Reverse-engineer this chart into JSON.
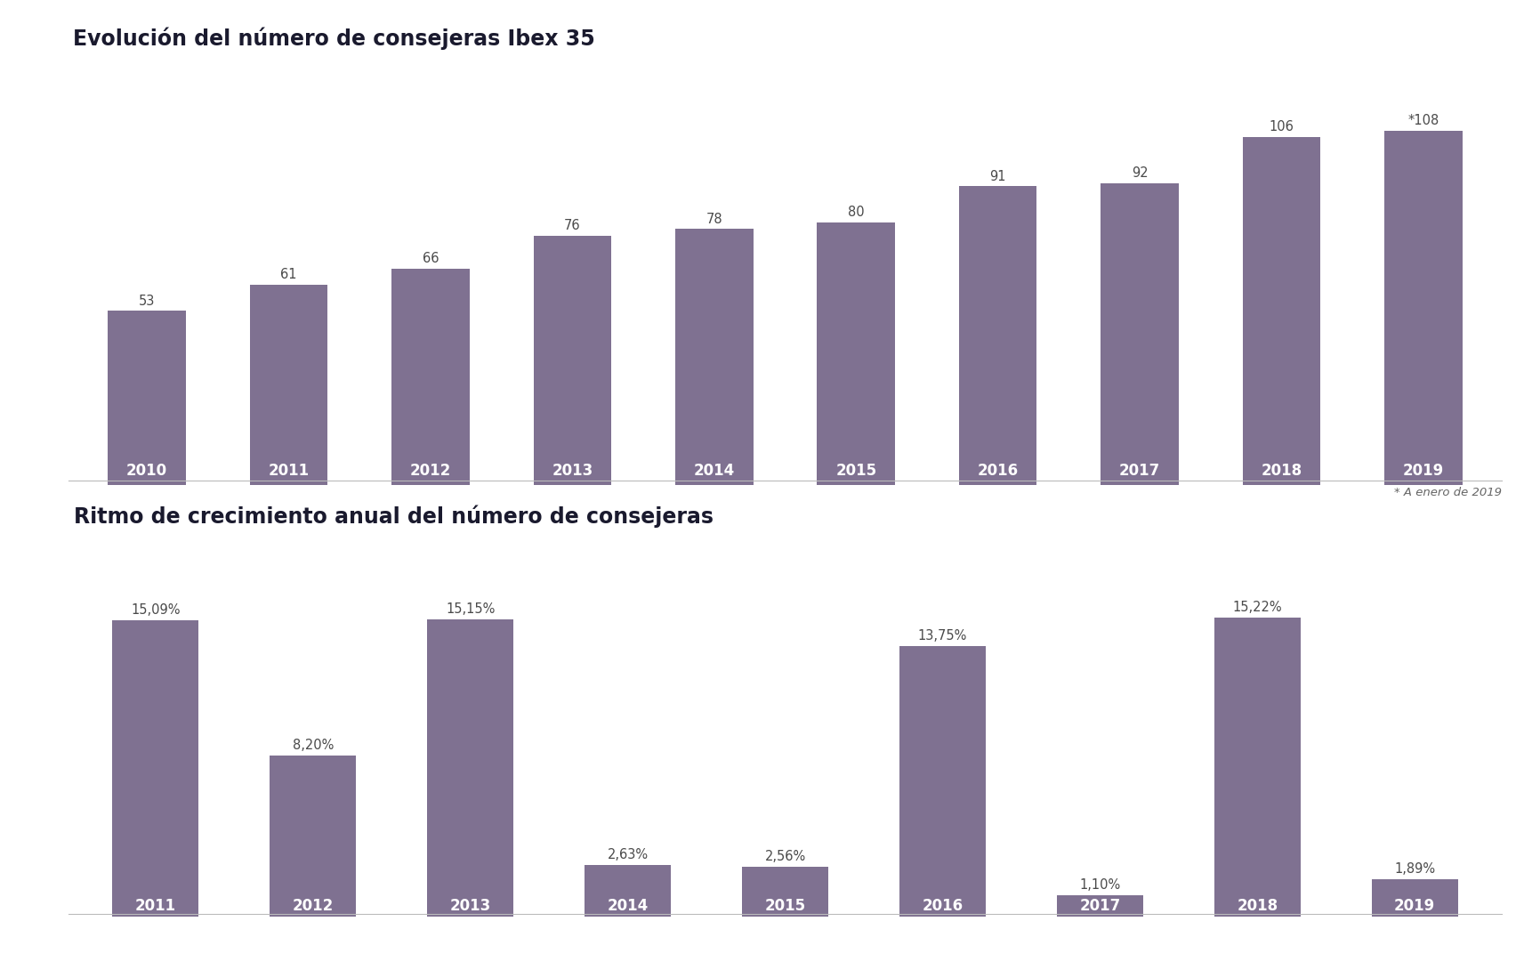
{
  "chart1_title": "Evolución del número de consejeras Ibex 35",
  "chart1_years": [
    "2010",
    "2011",
    "2012",
    "2013",
    "2014",
    "2015",
    "2016",
    "2017",
    "2018",
    "2019"
  ],
  "chart1_values": [
    53,
    61,
    66,
    76,
    78,
    80,
    91,
    92,
    106,
    108
  ],
  "chart1_labels": [
    "53",
    "61",
    "66",
    "76",
    "78",
    "80",
    "91",
    "92",
    "106",
    "*108"
  ],
  "chart1_footnote": "* A enero de 2019",
  "chart2_title": "Ritmo de crecimiento anual del número de consejeras",
  "chart2_years": [
    "2011",
    "2012",
    "2013",
    "2014",
    "2015",
    "2016",
    "2017",
    "2018",
    "2019"
  ],
  "chart2_values": [
    15.09,
    8.2,
    15.15,
    2.63,
    2.56,
    13.75,
    1.1,
    15.22,
    1.89
  ],
  "chart2_labels": [
    "15,09%",
    "8,20%",
    "15,15%",
    "2,63%",
    "2,56%",
    "13,75%",
    "1,10%",
    "15,22%",
    "1,89%"
  ],
  "bar_color": "#7f7191",
  "year_label_color": "#ffffff",
  "value_label_color": "#4a4a4a",
  "title_color": "#1a1a2e",
  "footnote_color": "#666666",
  "background_color": "#ffffff",
  "title_fontsize": 17,
  "year_label_fontsize": 12,
  "value_label_fontsize": 10.5,
  "footnote_fontsize": 9.5,
  "chart1_ylim": [
    0,
    130
  ],
  "chart2_ylim": [
    0,
    19.5
  ],
  "bar_width": 0.55
}
